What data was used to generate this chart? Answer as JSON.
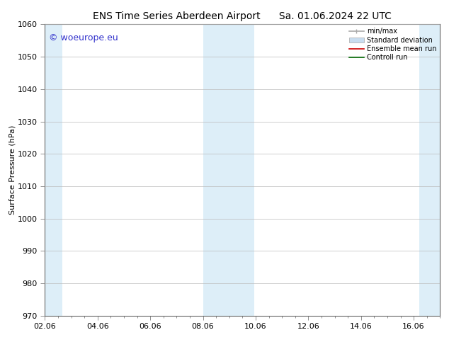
{
  "title_left": "ENS Time Series Aberdeen Airport",
  "title_right": "Sa. 01.06.2024 22 UTC",
  "ylabel": "Surface Pressure (hPa)",
  "ylim": [
    970,
    1060
  ],
  "yticks": [
    970,
    980,
    990,
    1000,
    1010,
    1020,
    1030,
    1040,
    1050,
    1060
  ],
  "xlim": [
    0,
    15
  ],
  "xtick_labels": [
    "02.06",
    "04.06",
    "06.06",
    "08.06",
    "10.06",
    "12.06",
    "14.06",
    "16.06"
  ],
  "xtick_positions": [
    0,
    2,
    4,
    6,
    8,
    10,
    12,
    14
  ],
  "shaded_regions": [
    {
      "x_start": 0.0,
      "x_end": 0.65,
      "color": "#ddeef8"
    },
    {
      "x_start": 6.0,
      "x_end": 7.95,
      "color": "#ddeef8"
    },
    {
      "x_start": 14.2,
      "x_end": 15.0,
      "color": "#ddeef8"
    }
  ],
  "legend_labels": [
    "min/max",
    "Standard deviation",
    "Ensemble mean run",
    "Controll run"
  ],
  "minmax_color": "#aaaaaa",
  "std_color": "#c8ddf0",
  "ensemble_color": "#cc0000",
  "control_color": "#006600",
  "watermark_text": "© woeurope.eu",
  "watermark_color": "#3333cc",
  "bg_color": "#ffffff",
  "plot_bg_color": "#ffffff",
  "grid_color": "#bbbbbb",
  "spine_color": "#666666",
  "title_fontsize": 10,
  "ylabel_fontsize": 8,
  "tick_fontsize": 8,
  "legend_fontsize": 7,
  "watermark_fontsize": 9
}
